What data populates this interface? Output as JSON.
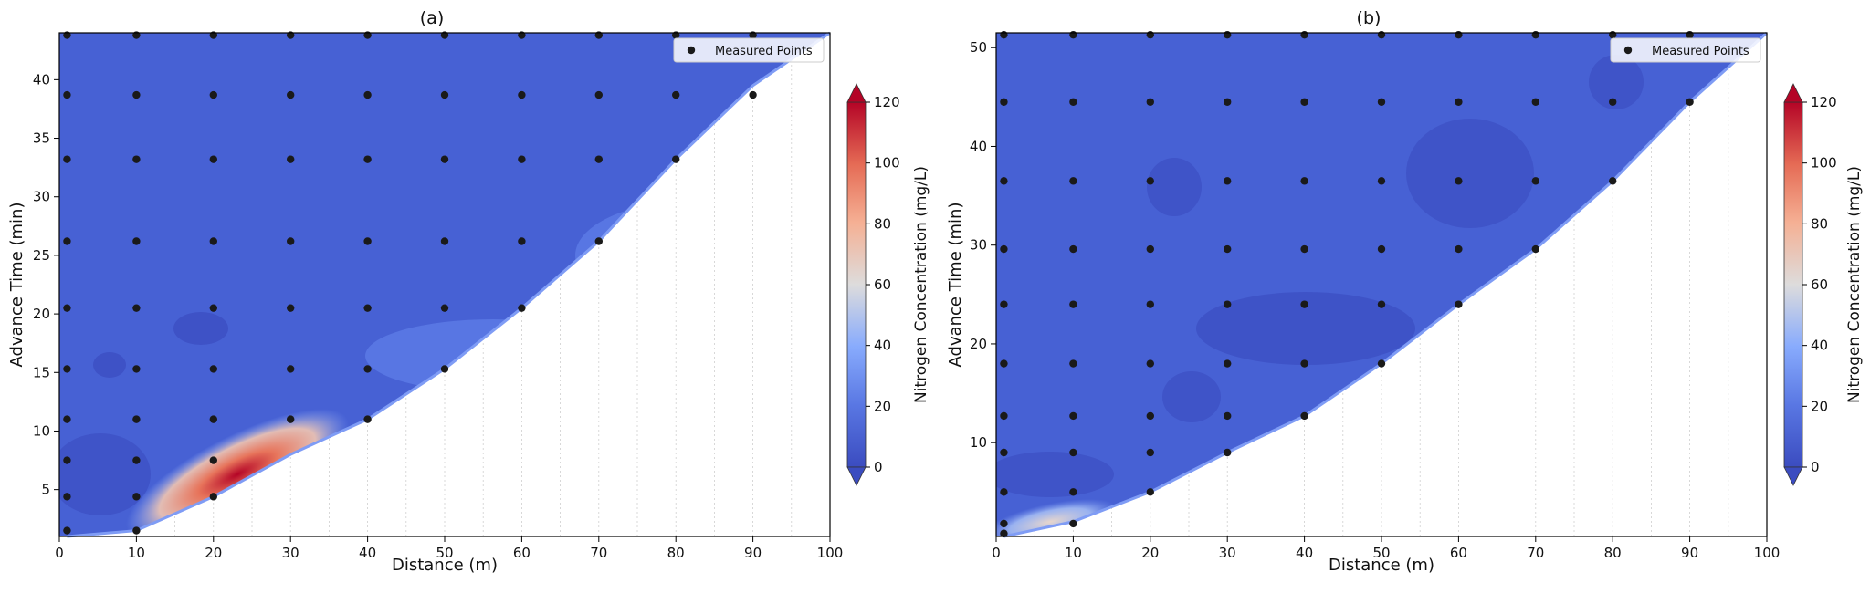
{
  "chart_data": [
    {
      "type": "heatmap",
      "title": "(a)",
      "xlabel": "Distance (m)",
      "ylabel": "Advance Time (min)",
      "xlim": [
        0,
        100
      ],
      "ylim": [
        1,
        44
      ],
      "x_ticks": [
        0,
        10,
        20,
        30,
        40,
        50,
        60,
        70,
        80,
        90,
        100
      ],
      "y_ticks": [
        5,
        10,
        15,
        20,
        25,
        30,
        35,
        40
      ],
      "legend": {
        "label": "Measured Points",
        "placement": "top-right"
      },
      "colorbar": {
        "label": "Nitrogen Concentration (mg/L)",
        "range": [
          0,
          120
        ],
        "ticks": [
          0,
          20,
          40,
          60,
          80,
          100,
          120
        ]
      },
      "advance_front": [
        [
          1,
          1.0
        ],
        [
          10,
          1.5
        ],
        [
          20,
          4.4
        ],
        [
          30,
          8.0
        ],
        [
          40,
          11.0
        ],
        [
          50,
          15.3
        ],
        [
          60,
          20.5
        ],
        [
          70,
          26.2
        ],
        [
          80,
          33.2
        ],
        [
          90,
          39.5
        ],
        [
          100,
          44.0
        ]
      ],
      "hotspot": {
        "x": 20,
        "y": 5,
        "value": 120
      },
      "measured_points": [
        [
          1,
          1.5
        ],
        [
          10,
          1.5
        ],
        [
          1,
          4.4
        ],
        [
          10,
          4.4
        ],
        [
          20,
          4.4
        ],
        [
          1,
          7.5
        ],
        [
          10,
          7.5
        ],
        [
          20,
          7.5
        ],
        [
          1,
          11.0
        ],
        [
          10,
          11.0
        ],
        [
          20,
          11.0
        ],
        [
          30,
          11.0
        ],
        [
          40,
          11.0
        ],
        [
          1,
          15.3
        ],
        [
          10,
          15.3
        ],
        [
          20,
          15.3
        ],
        [
          30,
          15.3
        ],
        [
          40,
          15.3
        ],
        [
          50,
          15.3
        ],
        [
          1,
          20.5
        ],
        [
          10,
          20.5
        ],
        [
          20,
          20.5
        ],
        [
          30,
          20.5
        ],
        [
          40,
          20.5
        ],
        [
          50,
          20.5
        ],
        [
          60,
          20.5
        ],
        [
          1,
          26.2
        ],
        [
          10,
          26.2
        ],
        [
          20,
          26.2
        ],
        [
          30,
          26.2
        ],
        [
          40,
          26.2
        ],
        [
          50,
          26.2
        ],
        [
          60,
          26.2
        ],
        [
          70,
          26.2
        ],
        [
          1,
          33.2
        ],
        [
          10,
          33.2
        ],
        [
          20,
          33.2
        ],
        [
          30,
          33.2
        ],
        [
          40,
          33.2
        ],
        [
          50,
          33.2
        ],
        [
          60,
          33.2
        ],
        [
          70,
          33.2
        ],
        [
          80,
          33.2
        ],
        [
          1,
          38.7
        ],
        [
          10,
          38.7
        ],
        [
          20,
          38.7
        ],
        [
          30,
          38.7
        ],
        [
          40,
          38.7
        ],
        [
          50,
          38.7
        ],
        [
          60,
          38.7
        ],
        [
          70,
          38.7
        ],
        [
          80,
          38.7
        ],
        [
          90,
          38.7
        ],
        [
          1,
          43.8
        ],
        [
          10,
          43.8
        ],
        [
          20,
          43.8
        ],
        [
          30,
          43.8
        ],
        [
          40,
          43.8
        ],
        [
          50,
          43.8
        ],
        [
          60,
          43.8
        ],
        [
          70,
          43.8
        ],
        [
          80,
          43.8
        ],
        [
          90,
          43.8
        ]
      ]
    },
    {
      "type": "heatmap",
      "title": "(b)",
      "xlabel": "Distance (m)",
      "ylabel": "Advance Time (min)",
      "xlim": [
        0,
        100
      ],
      "ylim": [
        0.5,
        51.5
      ],
      "x_ticks": [
        0,
        10,
        20,
        30,
        40,
        50,
        60,
        70,
        80,
        90,
        100
      ],
      "y_ticks": [
        10,
        20,
        30,
        40,
        50
      ],
      "legend": {
        "label": "Measured Points",
        "placement": "top-right"
      },
      "colorbar": {
        "label": "Nitrogen Concentration (mg/L)",
        "range": [
          0,
          120
        ],
        "ticks": [
          0,
          20,
          40,
          60,
          80,
          100,
          120
        ]
      },
      "advance_front": [
        [
          1,
          0.5
        ],
        [
          10,
          2.0
        ],
        [
          20,
          5.0
        ],
        [
          30,
          9.0
        ],
        [
          40,
          12.7
        ],
        [
          50,
          18.0
        ],
        [
          60,
          24.0
        ],
        [
          70,
          29.6
        ],
        [
          80,
          36.5
        ],
        [
          90,
          44.5
        ],
        [
          100,
          51.5
        ]
      ],
      "hotspot": {
        "x": 8,
        "y": 2.5,
        "value": 60
      },
      "measured_points": [
        [
          1,
          0.8
        ],
        [
          1,
          1.8
        ],
        [
          10,
          1.8
        ],
        [
          1,
          5.0
        ],
        [
          10,
          5.0
        ],
        [
          20,
          5.0
        ],
        [
          1,
          9.0
        ],
        [
          10,
          9.0
        ],
        [
          20,
          9.0
        ],
        [
          30,
          9.0
        ],
        [
          1,
          12.7
        ],
        [
          10,
          12.7
        ],
        [
          20,
          12.7
        ],
        [
          30,
          12.7
        ],
        [
          40,
          12.7
        ],
        [
          1,
          18.0
        ],
        [
          10,
          18.0
        ],
        [
          20,
          18.0
        ],
        [
          30,
          18.0
        ],
        [
          40,
          18.0
        ],
        [
          50,
          18.0
        ],
        [
          1,
          24.0
        ],
        [
          10,
          24.0
        ],
        [
          20,
          24.0
        ],
        [
          30,
          24.0
        ],
        [
          40,
          24.0
        ],
        [
          50,
          24.0
        ],
        [
          60,
          24.0
        ],
        [
          1,
          29.6
        ],
        [
          10,
          29.6
        ],
        [
          20,
          29.6
        ],
        [
          30,
          29.6
        ],
        [
          40,
          29.6
        ],
        [
          50,
          29.6
        ],
        [
          60,
          29.6
        ],
        [
          70,
          29.6
        ],
        [
          1,
          36.5
        ],
        [
          10,
          36.5
        ],
        [
          20,
          36.5
        ],
        [
          30,
          36.5
        ],
        [
          40,
          36.5
        ],
        [
          50,
          36.5
        ],
        [
          60,
          36.5
        ],
        [
          70,
          36.5
        ],
        [
          80,
          36.5
        ],
        [
          1,
          44.5
        ],
        [
          10,
          44.5
        ],
        [
          20,
          44.5
        ],
        [
          30,
          44.5
        ],
        [
          40,
          44.5
        ],
        [
          50,
          44.5
        ],
        [
          60,
          44.5
        ],
        [
          70,
          44.5
        ],
        [
          80,
          44.5
        ],
        [
          90,
          44.5
        ],
        [
          1,
          51.3
        ],
        [
          10,
          51.3
        ],
        [
          20,
          51.3
        ],
        [
          30,
          51.3
        ],
        [
          40,
          51.3
        ],
        [
          50,
          51.3
        ],
        [
          60,
          51.3
        ],
        [
          70,
          51.3
        ],
        [
          80,
          51.3
        ],
        [
          90,
          51.3
        ]
      ]
    }
  ]
}
